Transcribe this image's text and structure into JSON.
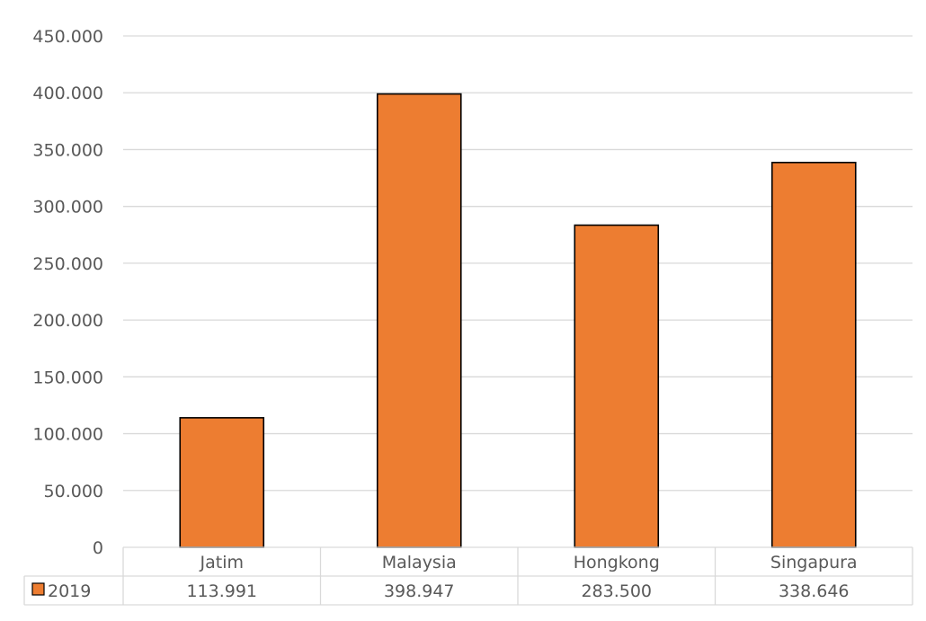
{
  "chart_data": {
    "type": "bar",
    "categories": [
      "Jatim",
      "Malaysia",
      "Hongkong",
      "Singapura"
    ],
    "series": [
      {
        "name": "2019",
        "values": [
          113991,
          398947,
          283500,
          338646
        ],
        "value_labels": [
          "113.991",
          "398.947",
          "283.500",
          "338.646"
        ],
        "color": "#ED7D31"
      }
    ],
    "ylim": [
      0,
      450000
    ],
    "y_ticks": [
      0,
      50000,
      100000,
      150000,
      200000,
      250000,
      300000,
      350000,
      400000,
      450000
    ],
    "y_tick_labels": [
      "0",
      "50.000",
      "100.000",
      "150.000",
      "200.000",
      "250.000",
      "300.000",
      "350.000",
      "400.000",
      "450.000"
    ],
    "grid": true,
    "legend": "data-table-left",
    "data_table": true,
    "bar_outline_color": "#000000",
    "grid_color": "#D9D9D9",
    "text_color": "#595959"
  }
}
